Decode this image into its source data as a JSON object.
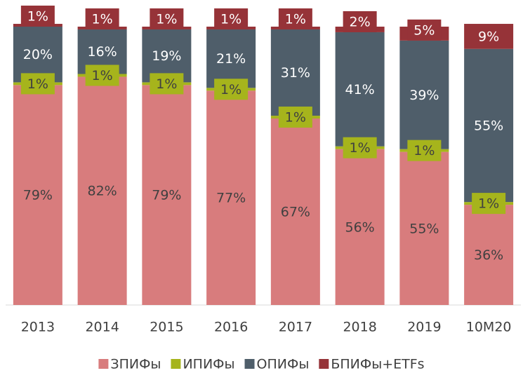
{
  "chart_data": {
    "type": "stacked_bar",
    "categories": [
      "2013",
      "2014",
      "2015",
      "2016",
      "2017",
      "2018",
      "2019",
      "10M20"
    ],
    "ylim": [
      0,
      100
    ],
    "series": [
      {
        "name": "ЗПИФы",
        "color": "#d87c7d",
        "label_color": "#404040",
        "values": [
          79,
          82,
          79,
          77,
          67,
          56,
          55,
          36
        ],
        "value_labels": [
          "79%",
          "82%",
          "79%",
          "77%",
          "67%",
          "56%",
          "55%",
          "36%"
        ]
      },
      {
        "name": "ИПИФы",
        "color": "#a6b41c",
        "label_color": "#404040",
        "values": [
          1,
          1,
          1,
          1,
          1,
          1,
          1,
          1
        ],
        "value_labels": [
          "1%",
          "1%",
          "1%",
          "1%",
          "1%",
          "1%",
          "1%",
          "1%"
        ]
      },
      {
        "name": "ОПИФы",
        "color": "#4f5e6a",
        "label_color": "#ffffff",
        "values": [
          20,
          16,
          19,
          21,
          31,
          41,
          39,
          55
        ],
        "value_labels": [
          "20%",
          "16%",
          "19%",
          "21%",
          "31%",
          "41%",
          "39%",
          "55%"
        ]
      },
      {
        "name": "БПИФы+ETFs",
        "color": "#963338",
        "label_color": "#ffffff",
        "values": [
          1,
          1,
          1,
          1,
          1,
          2,
          5,
          9
        ],
        "value_labels": [
          "1%",
          "1%",
          "1%",
          "1%",
          "1%",
          "2%",
          "5%",
          "9%"
        ]
      }
    ]
  }
}
